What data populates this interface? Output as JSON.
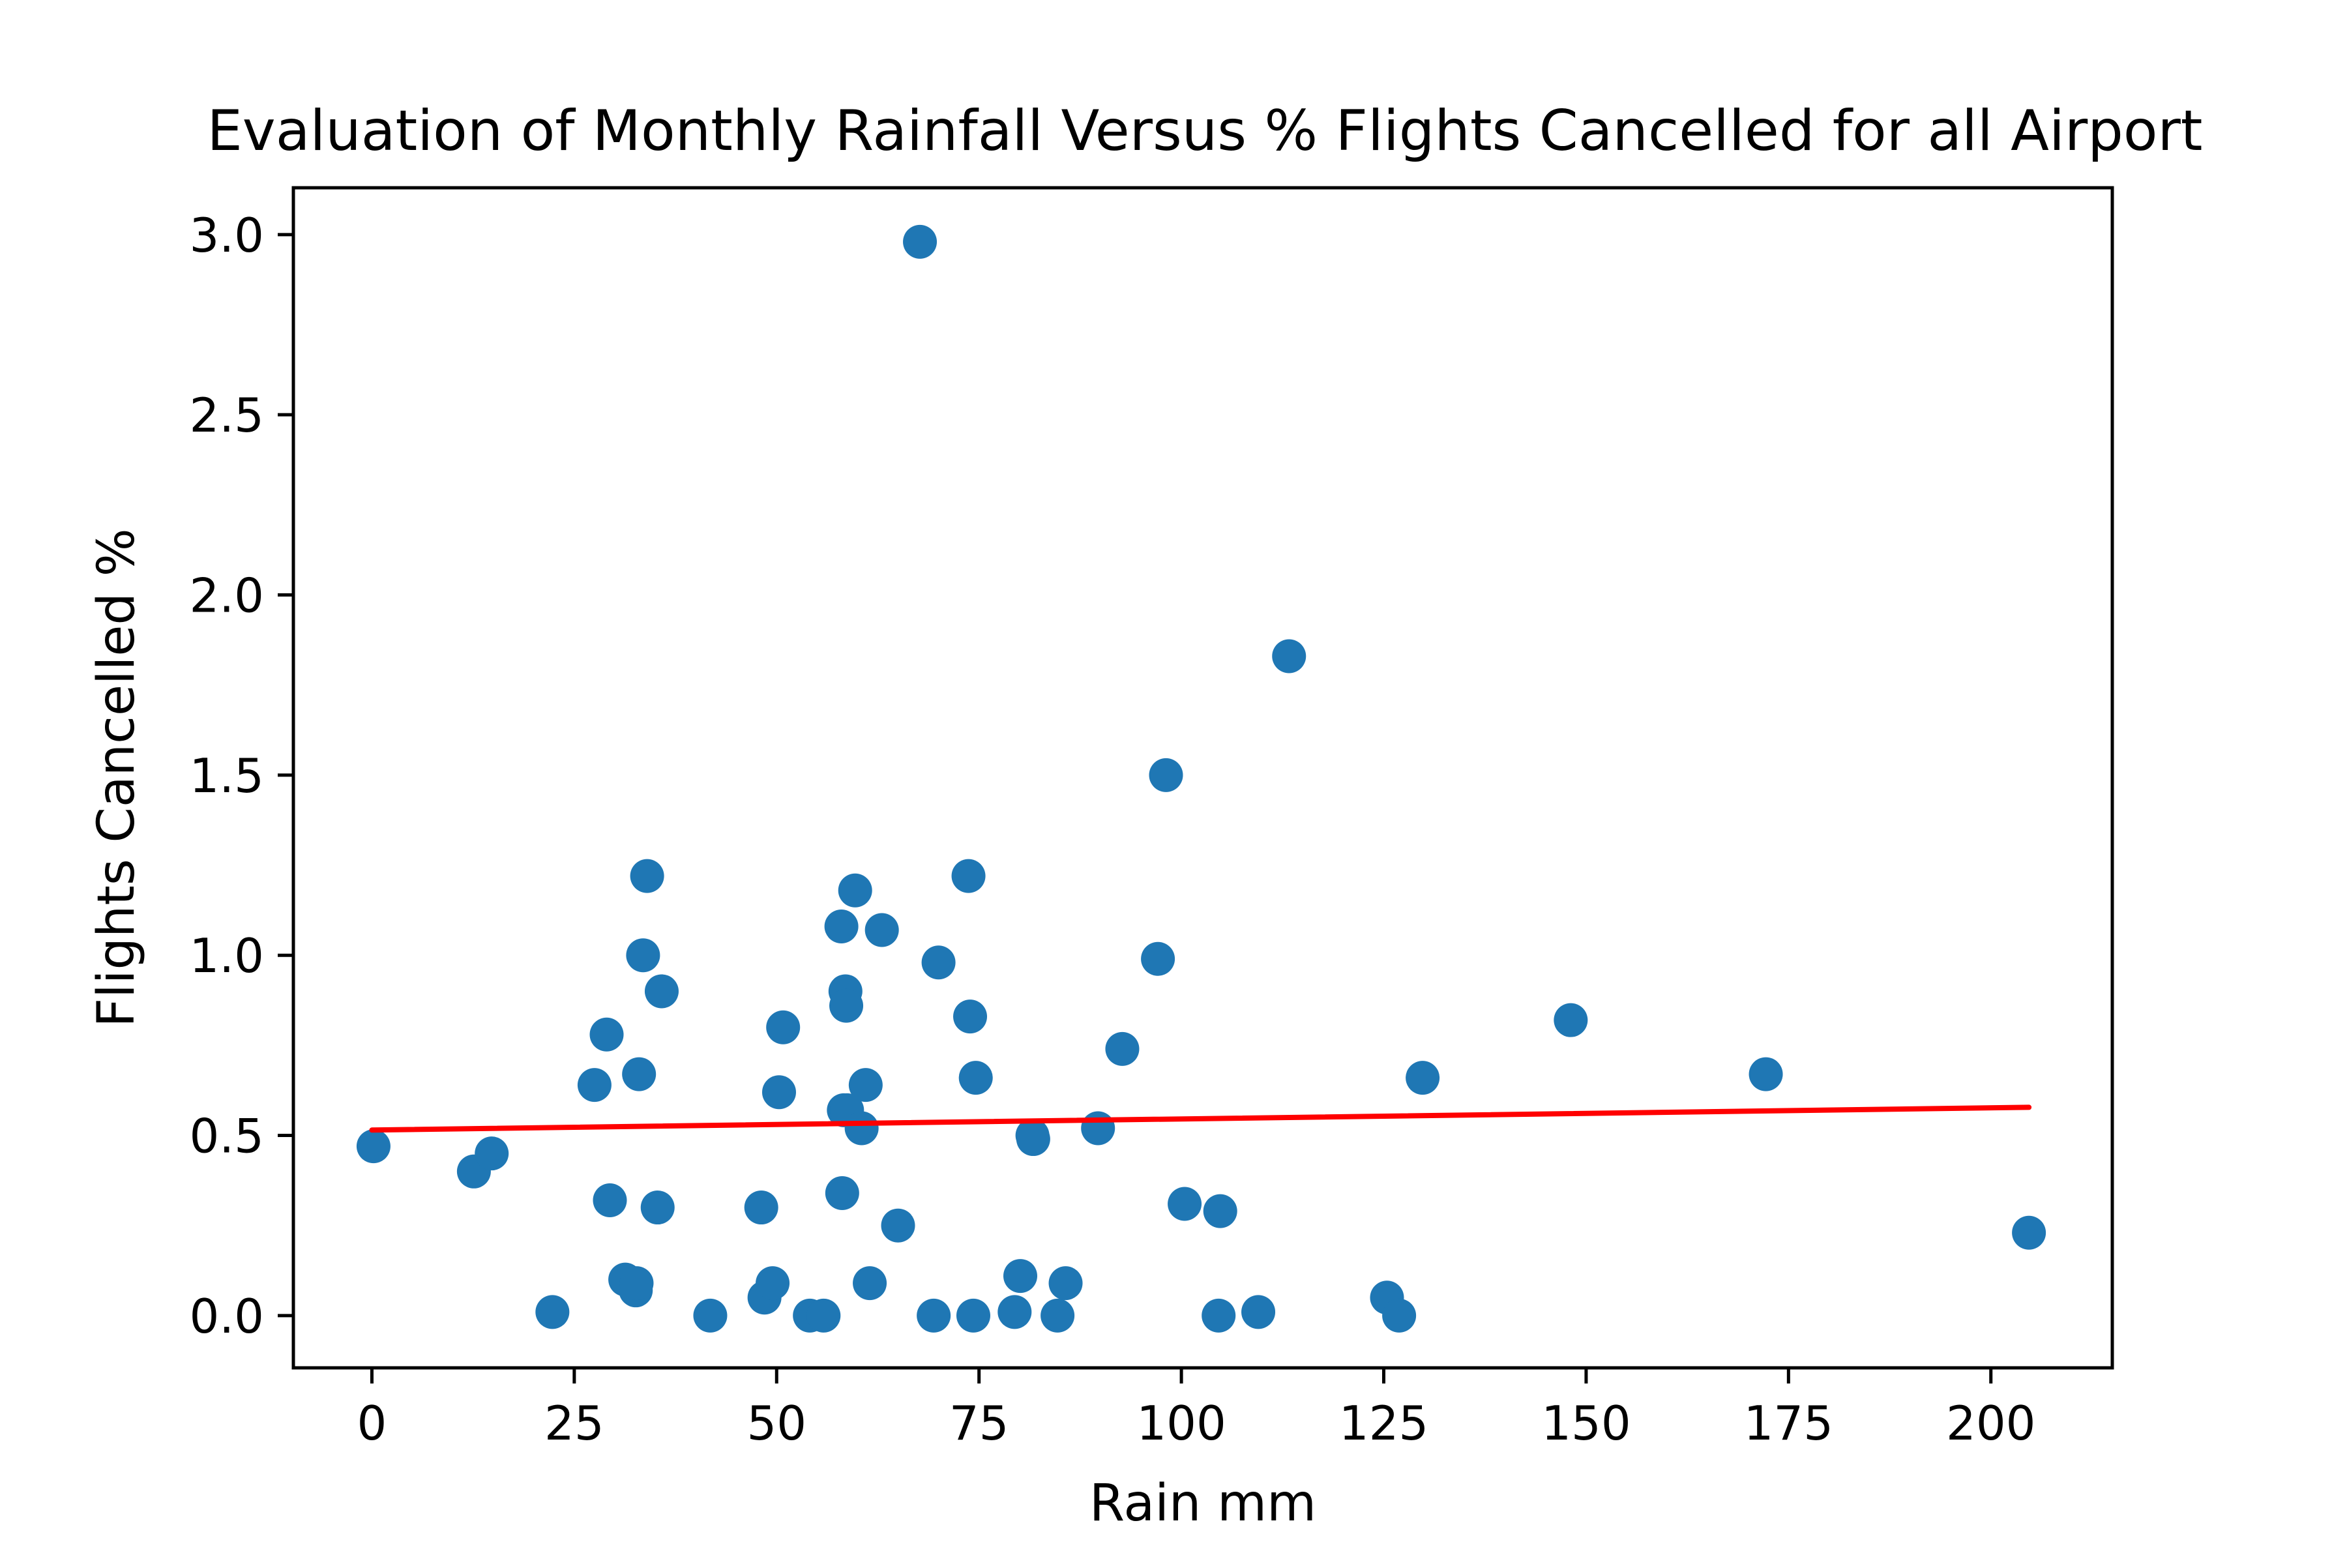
{
  "chart_data": {
    "type": "scatter",
    "title": "Evaluation of Monthly Rainfall Versus % Flights Cancelled for all Airport",
    "xlabel": "Rain mm",
    "ylabel": "Flights Cancelled %",
    "xlim": [
      -9.7,
      215
    ],
    "ylim": [
      -0.145,
      3.13
    ],
    "xticks": [
      0,
      25,
      50,
      75,
      100,
      125,
      150,
      175,
      200
    ],
    "xtick_labels": [
      "0",
      "25",
      "50",
      "75",
      "100",
      "125",
      "150",
      "175",
      "200"
    ],
    "yticks": [
      0.0,
      0.5,
      1.0,
      1.5,
      2.0,
      2.5,
      3.0
    ],
    "ytick_labels": [
      "0.0",
      "0.5",
      "1.0",
      "1.5",
      "2.0",
      "2.5",
      "3.0"
    ],
    "grid": false,
    "colors": {
      "points": "#1f77b4",
      "trend": "#ff0000"
    },
    "series": [
      {
        "kind": "points",
        "x": [
          0.2,
          12.6,
          14.8,
          22.3,
          27.5,
          29.0,
          29.4,
          31.3,
          32.6,
          32.7,
          33.0,
          33.5,
          34.0,
          35.3,
          35.8,
          41.8,
          48.1,
          48.5,
          49.5,
          50.3,
          50.8,
          54.1,
          55.8,
          58.0,
          58.1,
          58.3,
          58.5,
          58.6,
          58.7,
          59.7,
          60.5,
          61.0,
          61.5,
          63.0,
          65.0,
          67.7,
          69.4,
          70.0,
          73.7,
          73.9,
          74.3,
          74.6,
          79.4,
          80.1,
          81.6,
          81.7,
          84.7,
          85.7,
          89.7,
          92.7,
          97.1,
          98.1,
          100.4,
          104.6,
          104.8,
          109.5,
          113.3,
          125.4,
          126.9,
          129.8,
          148.1,
          172.2,
          204.7
        ],
        "y": [
          0.47,
          0.4,
          0.45,
          0.01,
          0.64,
          0.78,
          0.32,
          0.1,
          0.07,
          0.09,
          0.67,
          1.0,
          1.22,
          0.3,
          0.9,
          0.0,
          0.3,
          0.05,
          0.09,
          0.62,
          0.8,
          0.0,
          0.0,
          1.08,
          0.34,
          0.57,
          0.9,
          0.86,
          0.57,
          1.18,
          0.52,
          0.64,
          0.09,
          1.07,
          0.25,
          2.98,
          0.0,
          0.98,
          1.22,
          0.83,
          0.0,
          0.66,
          0.01,
          0.11,
          0.5,
          0.49,
          0.0,
          0.09,
          0.52,
          0.74,
          0.99,
          1.5,
          0.31,
          0.0,
          0.29,
          0.01,
          1.83,
          0.05,
          0.0,
          0.66,
          0.82,
          0.67,
          0.23
        ]
      },
      {
        "kind": "trend-line",
        "x": [
          0,
          204.7
        ],
        "y": [
          0.515,
          0.578
        ]
      }
    ]
  }
}
